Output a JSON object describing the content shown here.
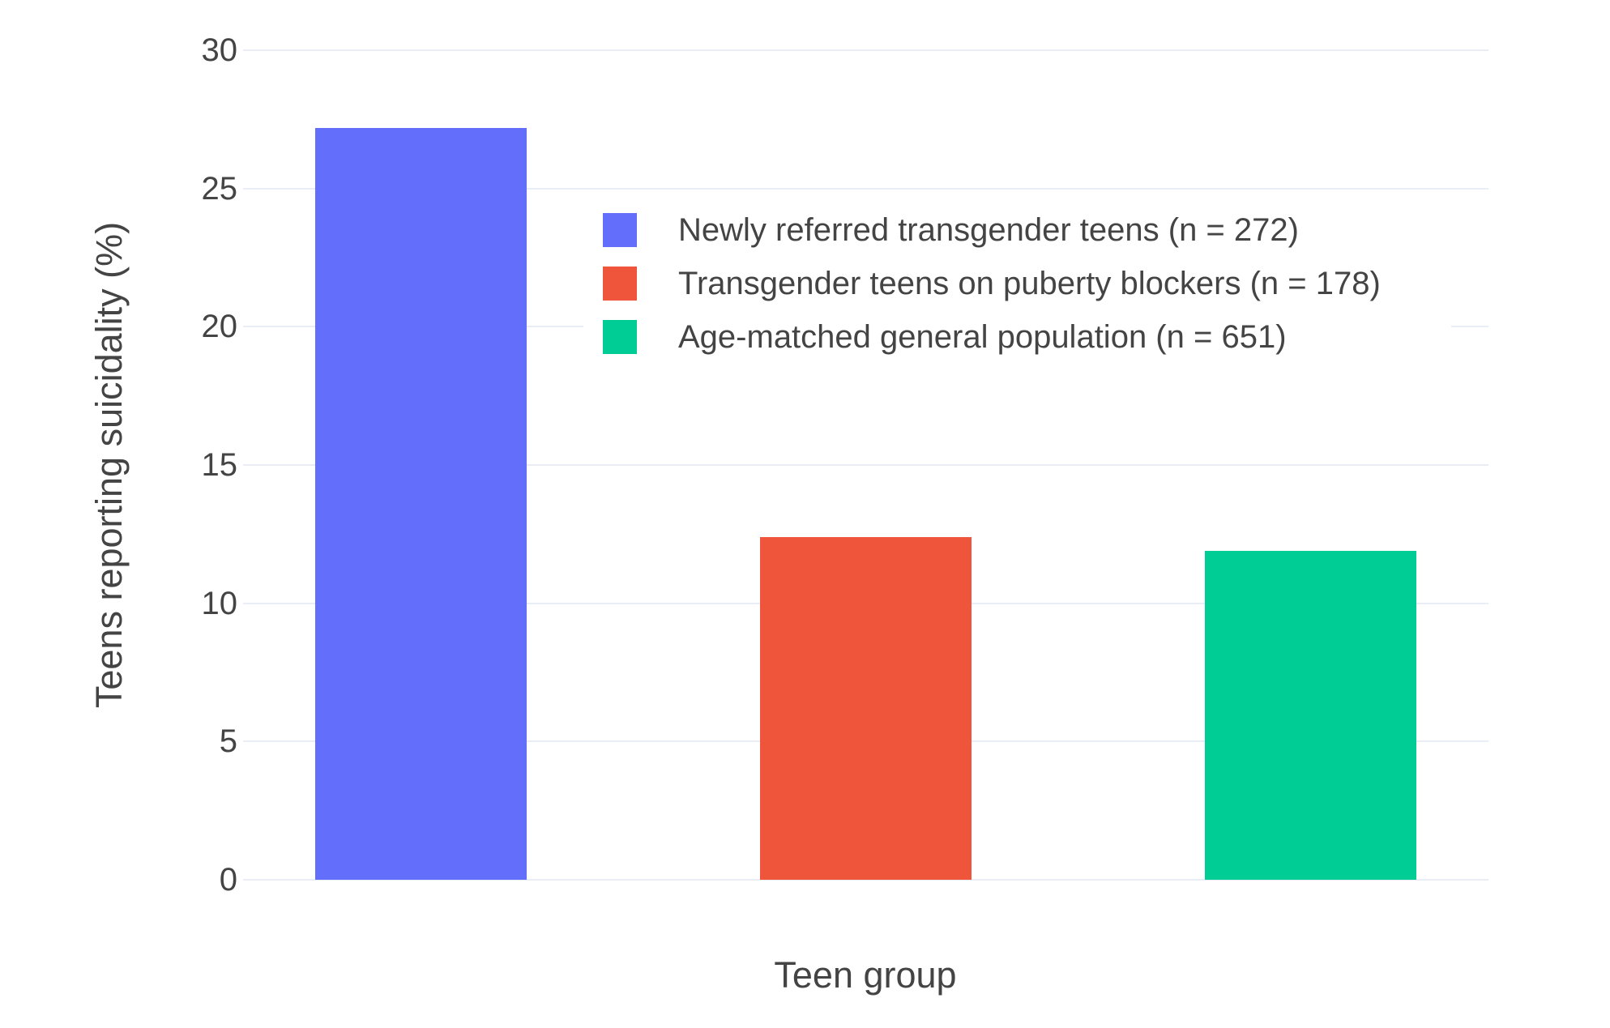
{
  "chart_data": {
    "type": "bar",
    "title": "",
    "xlabel": "Teen group",
    "ylabel": "Teens reporting suicidality (%)",
    "ylim": [
      0,
      30
    ],
    "yticks": [
      0,
      5,
      10,
      15,
      20,
      25,
      30
    ],
    "grid": true,
    "legend_position": "inside-top-right",
    "categories": [
      "Newly referred transgender teens",
      "Transgender teens on puberty blockers",
      "Age-matched general population"
    ],
    "series": [
      {
        "name": "Newly referred transgender teens (n = 272)",
        "value": 27.2,
        "color": "#636EFA"
      },
      {
        "name": "Transgender teens on puberty blockers (n = 178)",
        "value": 12.4,
        "color": "#EF553B"
      },
      {
        "name": "Age-matched general population (n = 651)",
        "value": 11.9,
        "color": "#00CC96"
      }
    ]
  },
  "colors": {
    "background": "#ffffff",
    "grid": "#e9eef6",
    "text": "#444444",
    "legend_background": "#ffffff"
  }
}
